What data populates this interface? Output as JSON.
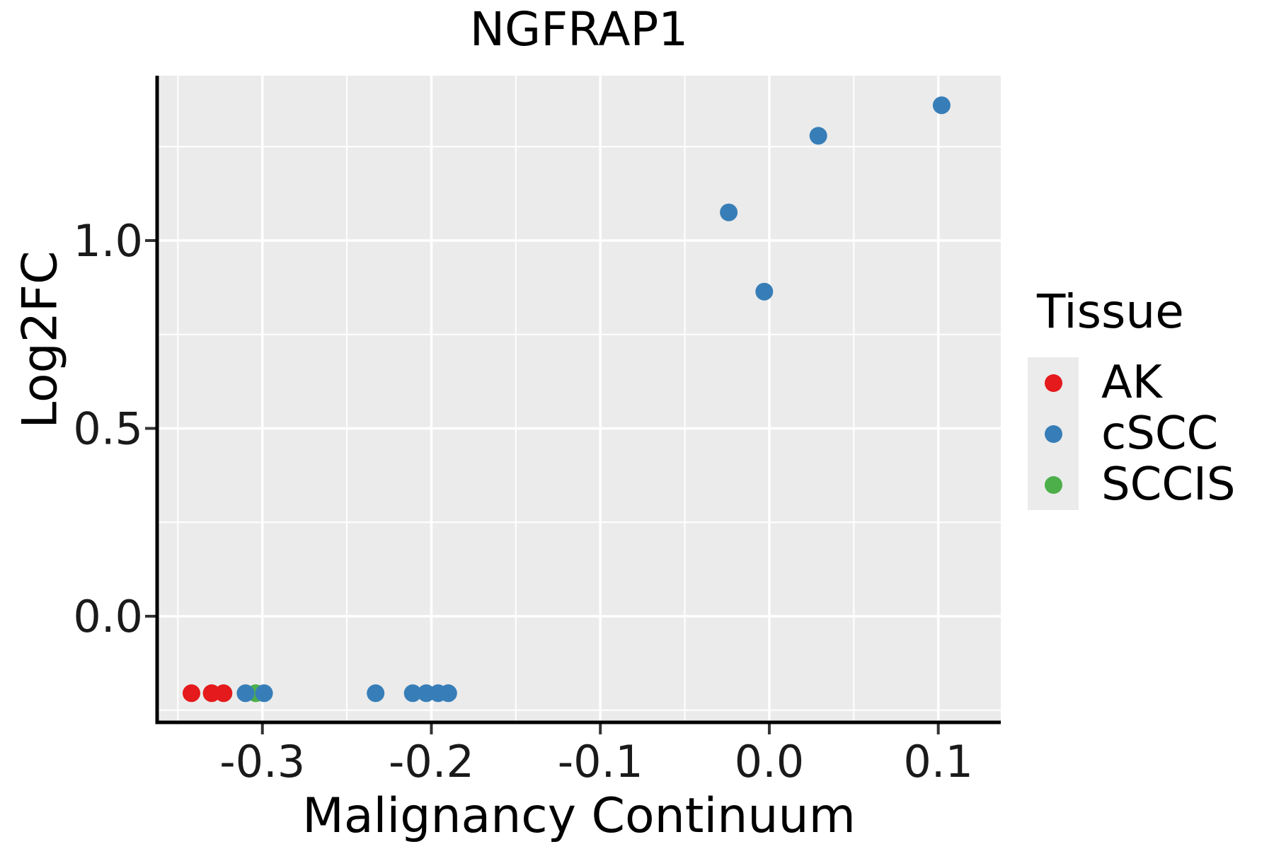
{
  "chart_data": {
    "type": "scatter",
    "title": "NGFRAP1",
    "xlabel": "Malignancy Continuum",
    "ylabel": "Log2FC",
    "xlim": [
      -0.3623,
      0.137
    ],
    "ylim": [
      -0.2825,
      1.4388
    ],
    "x_ticks": {
      "values": [
        -0.3,
        -0.2,
        -0.1,
        0.0,
        0.1
      ],
      "labels": [
        "-0.3",
        "-0.2",
        "-0.1",
        "0.0",
        "0.1"
      ],
      "minor": [
        -0.35,
        -0.25,
        -0.15,
        -0.05,
        0.05
      ]
    },
    "y_ticks": {
      "values": [
        0.0,
        0.5,
        1.0
      ],
      "labels": [
        "0.0",
        "0.5",
        "1.0"
      ],
      "minor": [
        -0.25,
        0.25,
        0.75,
        1.25
      ]
    },
    "grid": {
      "major": true,
      "minor": true,
      "color": "#FFFFFF"
    },
    "panel_bg": "#EBEBEB",
    "tick_color": "#333333",
    "axis_color": "#000000",
    "text_color": "#1a1a1a",
    "legend": {
      "title": "Tissue",
      "position": "right",
      "key_bg": "#EBEBEB",
      "entries": [
        {
          "label": "AK",
          "color": "#E41A1C"
        },
        {
          "label": "cSCC",
          "color": "#377EB8"
        },
        {
          "label": "SCCIS",
          "color": "#4DAF4A"
        }
      ]
    },
    "series": [
      {
        "name": "AK",
        "color": "#E41A1C",
        "points": [
          [
            -0.342,
            -0.205
          ],
          [
            -0.33,
            -0.205
          ],
          [
            -0.323,
            -0.205
          ]
        ]
      },
      {
        "name": "SCCIS",
        "color": "#4DAF4A",
        "points": [
          [
            -0.304,
            -0.205
          ]
        ]
      },
      {
        "name": "cSCC",
        "color": "#377EB8",
        "points": [
          [
            -0.31,
            -0.205
          ],
          [
            -0.299,
            -0.205
          ],
          [
            -0.233,
            -0.205
          ],
          [
            -0.211,
            -0.205
          ],
          [
            -0.203,
            -0.205
          ],
          [
            -0.196,
            -0.205
          ],
          [
            -0.19,
            -0.205
          ],
          [
            -0.024,
            1.075
          ],
          [
            -0.003,
            0.864
          ],
          [
            0.029,
            1.279
          ],
          [
            0.102,
            1.36
          ]
        ]
      }
    ]
  }
}
